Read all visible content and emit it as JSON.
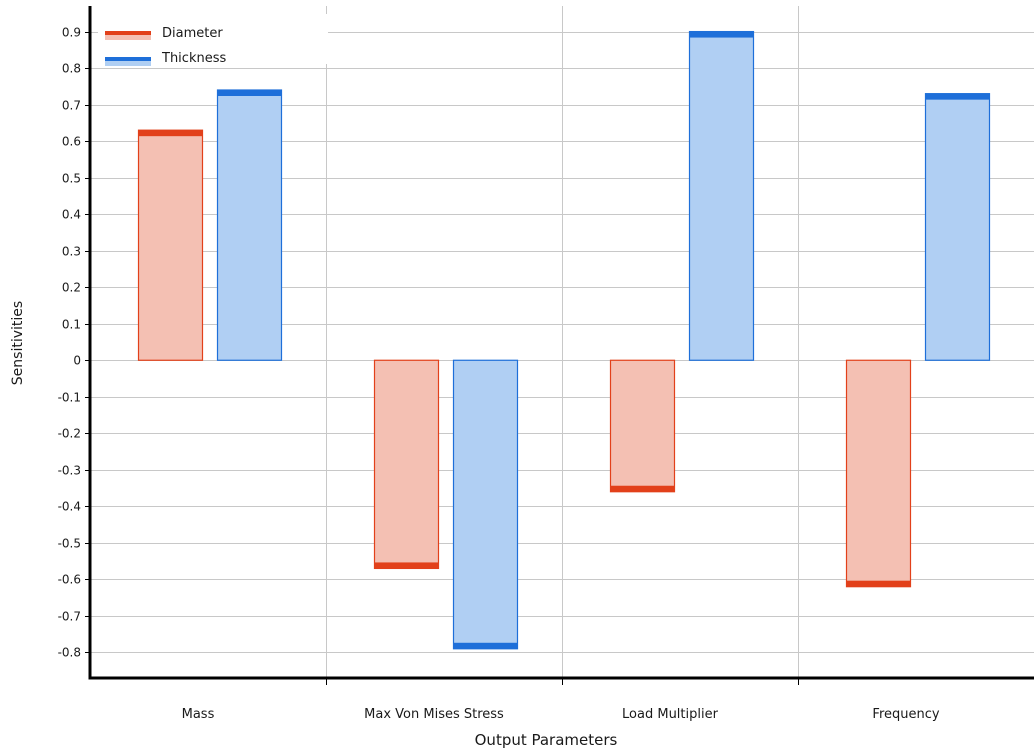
{
  "chart_data": {
    "type": "bar",
    "title": "",
    "xlabel": "Output Parameters",
    "ylabel": "Sensitivities",
    "ylim": [
      -0.87,
      0.97
    ],
    "yticks": [
      0.9,
      0.8,
      0.7,
      0.6,
      0.5,
      0.4,
      0.3,
      0.2,
      0.1,
      0,
      -0.1,
      -0.2,
      -0.3,
      -0.4,
      -0.5,
      -0.6,
      -0.7,
      -0.8
    ],
    "ytick_labels": [
      "0.9",
      "0.8",
      "0.7",
      "0.6",
      "0.5",
      "0.4",
      "0.3",
      "0.2",
      "0.1",
      "0",
      "-0.1",
      "-0.2",
      "-0.3",
      "-0.4",
      "-0.5",
      "-0.6",
      "-0.7",
      "-0.8"
    ],
    "categories": [
      "Mass",
      "Max Von Mises Stress",
      "Load Multiplier",
      "Frequency"
    ],
    "series": [
      {
        "name": "Diameter",
        "fill": "#f4c0b3",
        "edge": "#e2401a",
        "values": [
          0.63,
          -0.57,
          -0.36,
          -0.62
        ]
      },
      {
        "name": "Thickness",
        "fill": "#b0cff3",
        "edge": "#1e6fd9",
        "values": [
          0.74,
          -0.79,
          0.9,
          0.73
        ]
      }
    ],
    "grid": true,
    "legend": "top-left"
  }
}
